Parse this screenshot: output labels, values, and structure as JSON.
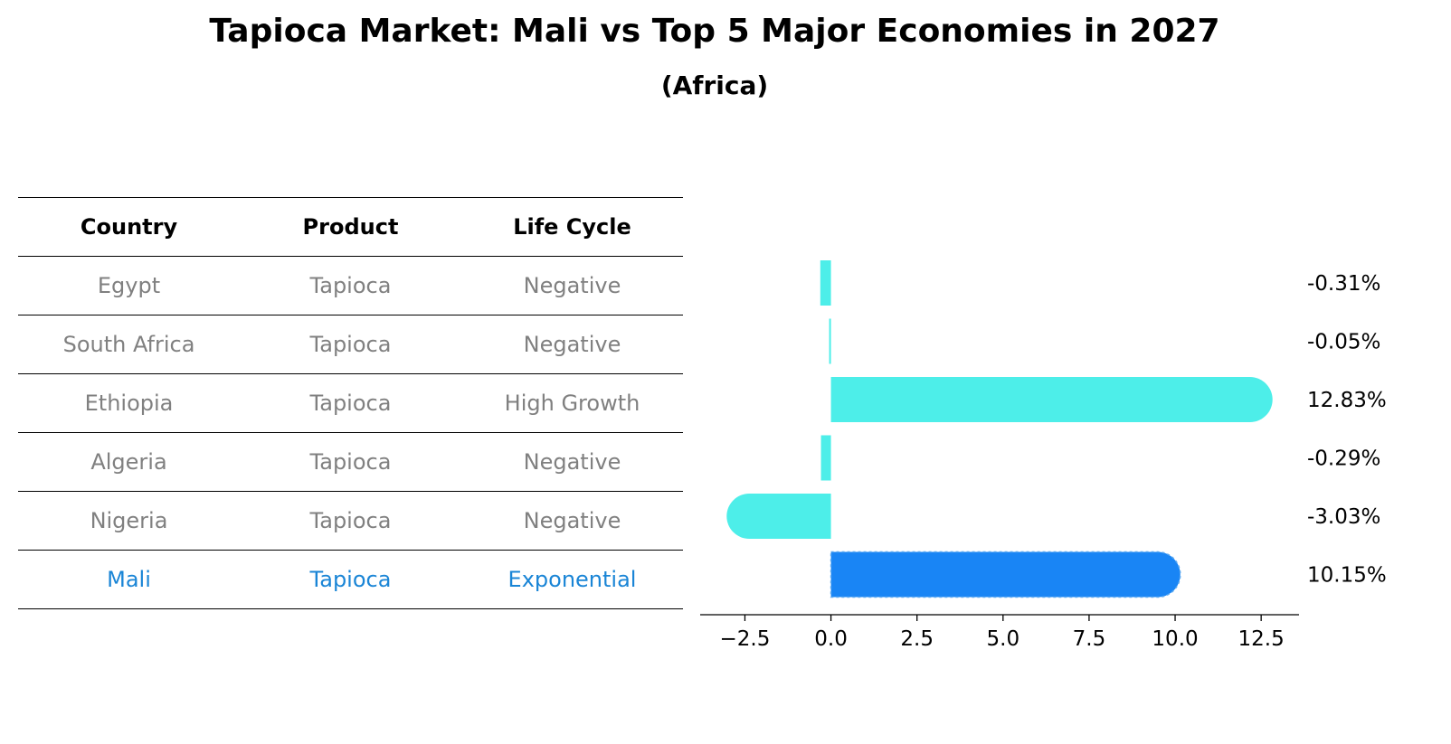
{
  "title": "Tapioca Market: Mali vs Top 5 Major Economies in 2027",
  "subtitle": "(Africa)",
  "table": {
    "headers": [
      "Country",
      "Product",
      "Life Cycle"
    ],
    "rows": [
      {
        "country": "Egypt",
        "product": "Tapioca",
        "life_cycle": "Negative"
      },
      {
        "country": "South Africa",
        "product": "Tapioca",
        "life_cycle": "Negative"
      },
      {
        "country": "Ethiopia",
        "product": "Tapioca",
        "life_cycle": "High Growth"
      },
      {
        "country": "Algeria",
        "product": "Tapioca",
        "life_cycle": "Negative"
      },
      {
        "country": "Nigeria",
        "product": "Tapioca",
        "life_cycle": "Negative"
      },
      {
        "country": "Mali",
        "product": "Tapioca",
        "life_cycle": "Exponential"
      }
    ],
    "colors": {
      "normal_text": "#808080",
      "highlight_text": "#1a85d6",
      "header_text": "#000000"
    }
  },
  "chart_data": {
    "type": "bar",
    "orientation": "horizontal",
    "categories": [
      "Egypt",
      "South Africa",
      "Ethiopia",
      "Algeria",
      "Nigeria",
      "Mali"
    ],
    "values": [
      -0.31,
      -0.05,
      12.83,
      -0.29,
      -3.03,
      10.15
    ],
    "value_labels": [
      "-0.31%",
      "-0.05%",
      "12.83%",
      "-0.29%",
      "-3.03%",
      "10.15%"
    ],
    "xlim": [
      -3.8,
      13.6
    ],
    "xticks": [
      -2.5,
      0.0,
      2.5,
      5.0,
      7.5,
      10.0,
      12.5
    ],
    "xtick_labels": [
      "−2.5",
      "0.0",
      "2.5",
      "5.0",
      "7.5",
      "10.0",
      "12.5"
    ],
    "highlight": "Mali",
    "colors": {
      "default": "#4deee9",
      "highlight": "#1985f5"
    }
  }
}
